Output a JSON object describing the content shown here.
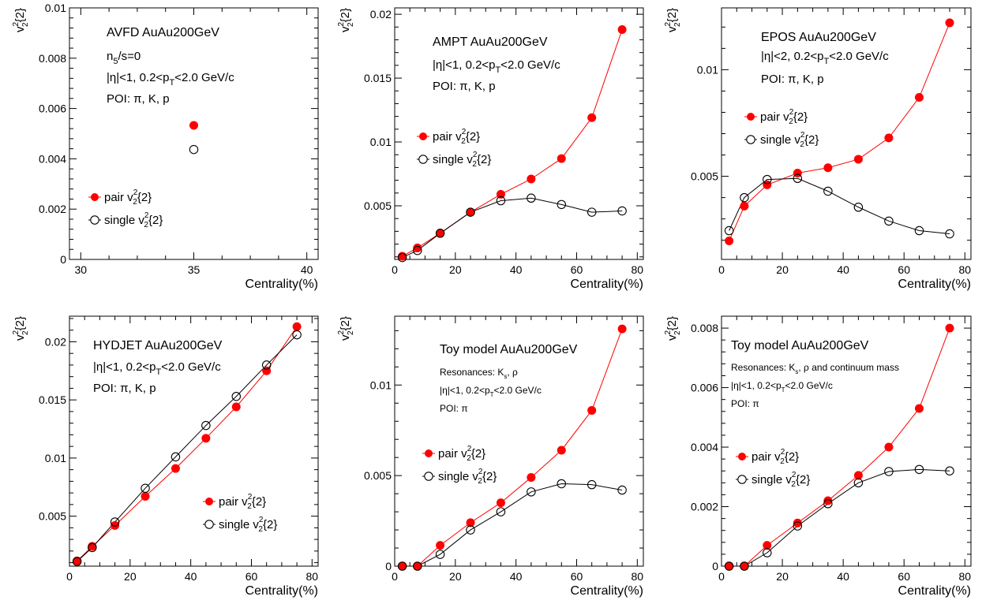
{
  "colors": {
    "pair": "#ff0000",
    "single": "#000000",
    "axis": "#000000"
  },
  "chart_data": [
    {
      "type": "scatter",
      "ylabel_base": "v",
      "ylabel_sup": "2",
      "ylabel_sub": "2",
      "ylabel_tail": "{2}",
      "xlabel": "Centrality(%)",
      "xlim": [
        29.5,
        40.5
      ],
      "ylim": [
        0,
        0.01
      ],
      "xticks": [
        30,
        35,
        40
      ],
      "xticklabels": [
        "30",
        "35",
        "40"
      ],
      "yticks": [
        0,
        0.002,
        0.004,
        0.006,
        0.008,
        0.01
      ],
      "yticklabels": [
        "0",
        "0.002",
        "0.004",
        "0.006",
        "0.008",
        "0.01"
      ],
      "connect": false,
      "annotations": [
        [
          {
            "t": "AVFD AuAu200GeV"
          }
        ],
        [
          {
            "t": "n"
          },
          {
            "t": "5",
            "s": "sub"
          },
          {
            "t": "/s=0"
          }
        ],
        [
          {
            "t": "|η|<1, 0.2<p"
          },
          {
            "t": "T",
            "s": "sub"
          },
          {
            "t": "<2.0 GeV/c"
          }
        ],
        [
          {
            "t": "POI: π, K, p"
          }
        ]
      ],
      "legend": {
        "pair": "pair v",
        "single": "single v",
        "sup": "2",
        "sub": "2",
        "tail": "{2}"
      },
      "series": [
        {
          "name": "pair v2{2}",
          "x": [
            35
          ],
          "y": [
            0.00533
          ]
        },
        {
          "name": "single v2{2}",
          "x": [
            35
          ],
          "y": [
            0.00437
          ]
        }
      ]
    },
    {
      "type": "line",
      "ylabel_base": "v",
      "ylabel_sup": "2",
      "ylabel_sub": "2",
      "ylabel_tail": "{2}",
      "xlabel": "Centrality(%)",
      "xlim": [
        0,
        82
      ],
      "ylim": [
        0.0008,
        0.0205
      ],
      "xticks": [
        0,
        20,
        40,
        60,
        80
      ],
      "xticklabels": [
        "0",
        "20",
        "40",
        "60",
        "80"
      ],
      "yticks": [
        0.005,
        0.01,
        0.015,
        0.02
      ],
      "yticklabels": [
        "0.005",
        "0.01",
        "0.015",
        "0.02"
      ],
      "connect": true,
      "annotations": [
        [
          {
            "t": "AMPT AuAu200GeV"
          }
        ],
        [
          {
            "t": "|η|<1, 0.2<p"
          },
          {
            "t": "T",
            "s": "sub"
          },
          {
            "t": "<2.0 GeV/c"
          }
        ],
        [
          {
            "t": "POI: π, K, p"
          }
        ]
      ],
      "legend": {
        "pair": "pair v",
        "single": "single v",
        "sup": "2",
        "sub": "2",
        "tail": "{2}"
      },
      "series": [
        {
          "name": "pair v2{2}",
          "x": [
            2.5,
            7.5,
            15,
            25,
            35,
            45,
            55,
            65,
            75
          ],
          "y": [
            0.00105,
            0.0017,
            0.00285,
            0.0045,
            0.0059,
            0.0071,
            0.0087,
            0.0119,
            0.0188
          ]
        },
        {
          "name": "single v2{2}",
          "x": [
            2.5,
            7.5,
            15,
            25,
            35,
            45,
            55,
            65,
            75
          ],
          "y": [
            0.00095,
            0.0015,
            0.00285,
            0.0045,
            0.0054,
            0.0056,
            0.0051,
            0.0045,
            0.0046
          ]
        }
      ]
    },
    {
      "type": "line",
      "ylabel_base": "v",
      "ylabel_sup": "2",
      "ylabel_sub": "2",
      "ylabel_tail": "{2}",
      "xlabel": "Centrality(%)",
      "xlim": [
        0,
        82
      ],
      "ylim": [
        0.0011,
        0.0129
      ],
      "xticks": [
        0,
        20,
        40,
        60,
        80
      ],
      "xticklabels": [
        "0",
        "20",
        "40",
        "60",
        "80"
      ],
      "yticks": [
        0.005,
        0.01
      ],
      "yticklabels": [
        "0.005",
        "0.01"
      ],
      "connect": true,
      "annotations": [
        [
          {
            "t": "EPOS AuAu200GeV"
          }
        ],
        [
          {
            "t": "|η|<2, 0.2<p"
          },
          {
            "t": "T",
            "s": "sub"
          },
          {
            "t": "<2.0 GeV/c"
          }
        ],
        [
          {
            "t": "POI: π, K, p"
          }
        ]
      ],
      "legend": {
        "pair": "pair v",
        "single": "single v",
        "sup": "2",
        "sub": "2",
        "tail": "{2}"
      },
      "series": [
        {
          "name": "pair v2{2}",
          "x": [
            2.5,
            7.5,
            15,
            25,
            35,
            45,
            55,
            65,
            75
          ],
          "y": [
            0.00197,
            0.0036,
            0.0046,
            0.00515,
            0.0054,
            0.0058,
            0.0068,
            0.0087,
            0.0122
          ]
        },
        {
          "name": "single v2{2}",
          "x": [
            2.5,
            7.5,
            15,
            25,
            35,
            45,
            55,
            65,
            75
          ],
          "y": [
            0.00245,
            0.004,
            0.00485,
            0.0049,
            0.0043,
            0.00355,
            0.0029,
            0.00245,
            0.0023
          ]
        }
      ]
    },
    {
      "type": "line",
      "ylabel_base": "v",
      "ylabel_sup": "2",
      "ylabel_sub": "2",
      "ylabel_tail": "{2}",
      "xlabel": "Centrality(%)",
      "xlim": [
        0,
        82
      ],
      "ylim": [
        0.0007,
        0.0222
      ],
      "xticks": [
        0,
        20,
        40,
        60,
        80
      ],
      "xticklabels": [
        "0",
        "20",
        "40",
        "60",
        "80"
      ],
      "yticks": [
        0.005,
        0.01,
        0.015,
        0.02
      ],
      "yticklabels": [
        "0.005",
        "0.01",
        "0.015",
        "0.02"
      ],
      "connect": true,
      "annotations": [
        [
          {
            "t": "HYDJET AuAu200GeV"
          }
        ],
        [
          {
            "t": "|η|<1, 0.2<p"
          },
          {
            "t": "T",
            "s": "sub"
          },
          {
            "t": "<2.0 GeV/c"
          }
        ],
        [
          {
            "t": "POI: π, K, p"
          }
        ]
      ],
      "legend": {
        "pair": "pair v",
        "single": "single v",
        "sup": "2",
        "sub": "2",
        "tail": "{2}"
      },
      "series": [
        {
          "name": "pair v2{2}",
          "x": [
            2.5,
            7.5,
            15,
            25,
            35,
            45,
            55,
            65,
            75
          ],
          "y": [
            0.00115,
            0.0024,
            0.0042,
            0.0067,
            0.0091,
            0.0117,
            0.0144,
            0.0175,
            0.0213
          ]
        },
        {
          "name": "single v2{2}",
          "x": [
            2.5,
            7.5,
            15,
            25,
            35,
            45,
            55,
            65,
            75
          ],
          "y": [
            0.0011,
            0.0023,
            0.0045,
            0.0074,
            0.0101,
            0.0128,
            0.0153,
            0.018,
            0.0206
          ]
        }
      ]
    },
    {
      "type": "line",
      "ylabel_base": "v",
      "ylabel_sup": "2",
      "ylabel_sub": "2",
      "ylabel_tail": "{2}",
      "xlabel": "Centrality(%)",
      "xlim": [
        0,
        82
      ],
      "ylim": [
        0,
        0.0138
      ],
      "xticks": [
        0,
        20,
        40,
        60,
        80
      ],
      "xticklabels": [
        "0",
        "20",
        "40",
        "60",
        "80"
      ],
      "yticks": [
        0,
        0.005,
        0.01
      ],
      "yticklabels": [
        "0",
        "0.005",
        "0.01"
      ],
      "connect": true,
      "annotations": [
        [
          {
            "t": "Toy model AuAu200GeV"
          }
        ],
        [
          {
            "t": "Resonances: K"
          },
          {
            "t": "s",
            "s": "sub"
          },
          {
            "t": ", ρ"
          }
        ],
        [
          {
            "t": "|η|<1, 0.2<p"
          },
          {
            "t": "T",
            "s": "sub"
          },
          {
            "t": "<2.0 GeV/c"
          }
        ],
        [
          {
            "t": "POI: π"
          }
        ]
      ],
      "legend": {
        "pair": "pair v",
        "single": "single v",
        "sup": "2",
        "sub": "2",
        "tail": "{2}"
      },
      "series": [
        {
          "name": "pair v2{2}",
          "x": [
            2.5,
            7.5,
            15,
            25,
            35,
            45,
            55,
            65,
            75
          ],
          "y": [
            0,
            0,
            0.00115,
            0.0024,
            0.0035,
            0.0049,
            0.0064,
            0.0086,
            0.0131
          ]
        },
        {
          "name": "single v2{2}",
          "x": [
            2.5,
            7.5,
            15,
            25,
            35,
            45,
            55,
            65,
            75
          ],
          "y": [
            0,
            0,
            0.00065,
            0.002,
            0.003,
            0.0041,
            0.00455,
            0.0045,
            0.0042
          ]
        }
      ]
    },
    {
      "type": "line",
      "ylabel_base": "v",
      "ylabel_sup": "2",
      "ylabel_sub": "2",
      "ylabel_tail": "{2}",
      "xlabel": "Centrality(%)",
      "xlim": [
        0,
        82
      ],
      "ylim": [
        0,
        0.0084
      ],
      "xticks": [
        0,
        20,
        40,
        60,
        80
      ],
      "xticklabels": [
        "0",
        "20",
        "40",
        "60",
        "80"
      ],
      "yticks": [
        0,
        0.002,
        0.004,
        0.006,
        0.008
      ],
      "yticklabels": [
        "0",
        "0.002",
        "0.004",
        "0.006",
        "0.008"
      ],
      "connect": true,
      "annotations": [
        [
          {
            "t": "Toy model AuAu200GeV"
          }
        ],
        [
          {
            "t": "Resonances: K"
          },
          {
            "t": "s",
            "s": "sub"
          },
          {
            "t": ", ρ and continuum mass"
          }
        ],
        [
          {
            "t": "|η|<1, 0.2<p"
          },
          {
            "t": "T",
            "s": "sub"
          },
          {
            "t": "<2.0 GeV/c"
          }
        ],
        [
          {
            "t": "POI: π"
          }
        ]
      ],
      "legend": {
        "pair": "pair v",
        "single": "single v",
        "sup": "2",
        "sub": "2",
        "tail": "{2}"
      },
      "series": [
        {
          "name": "pair v2{2}",
          "x": [
            2.5,
            7.5,
            15,
            25,
            35,
            45,
            55,
            65,
            75
          ],
          "y": [
            0,
            0,
            0.0007,
            0.00145,
            0.0022,
            0.00305,
            0.004,
            0.0053,
            0.008
          ]
        },
        {
          "name": "single v2{2}",
          "x": [
            2.5,
            7.5,
            15,
            25,
            35,
            45,
            55,
            65,
            75
          ],
          "y": [
            0,
            0,
            0.00045,
            0.00135,
            0.0021,
            0.0028,
            0.00318,
            0.00325,
            0.0032
          ]
        }
      ]
    }
  ]
}
